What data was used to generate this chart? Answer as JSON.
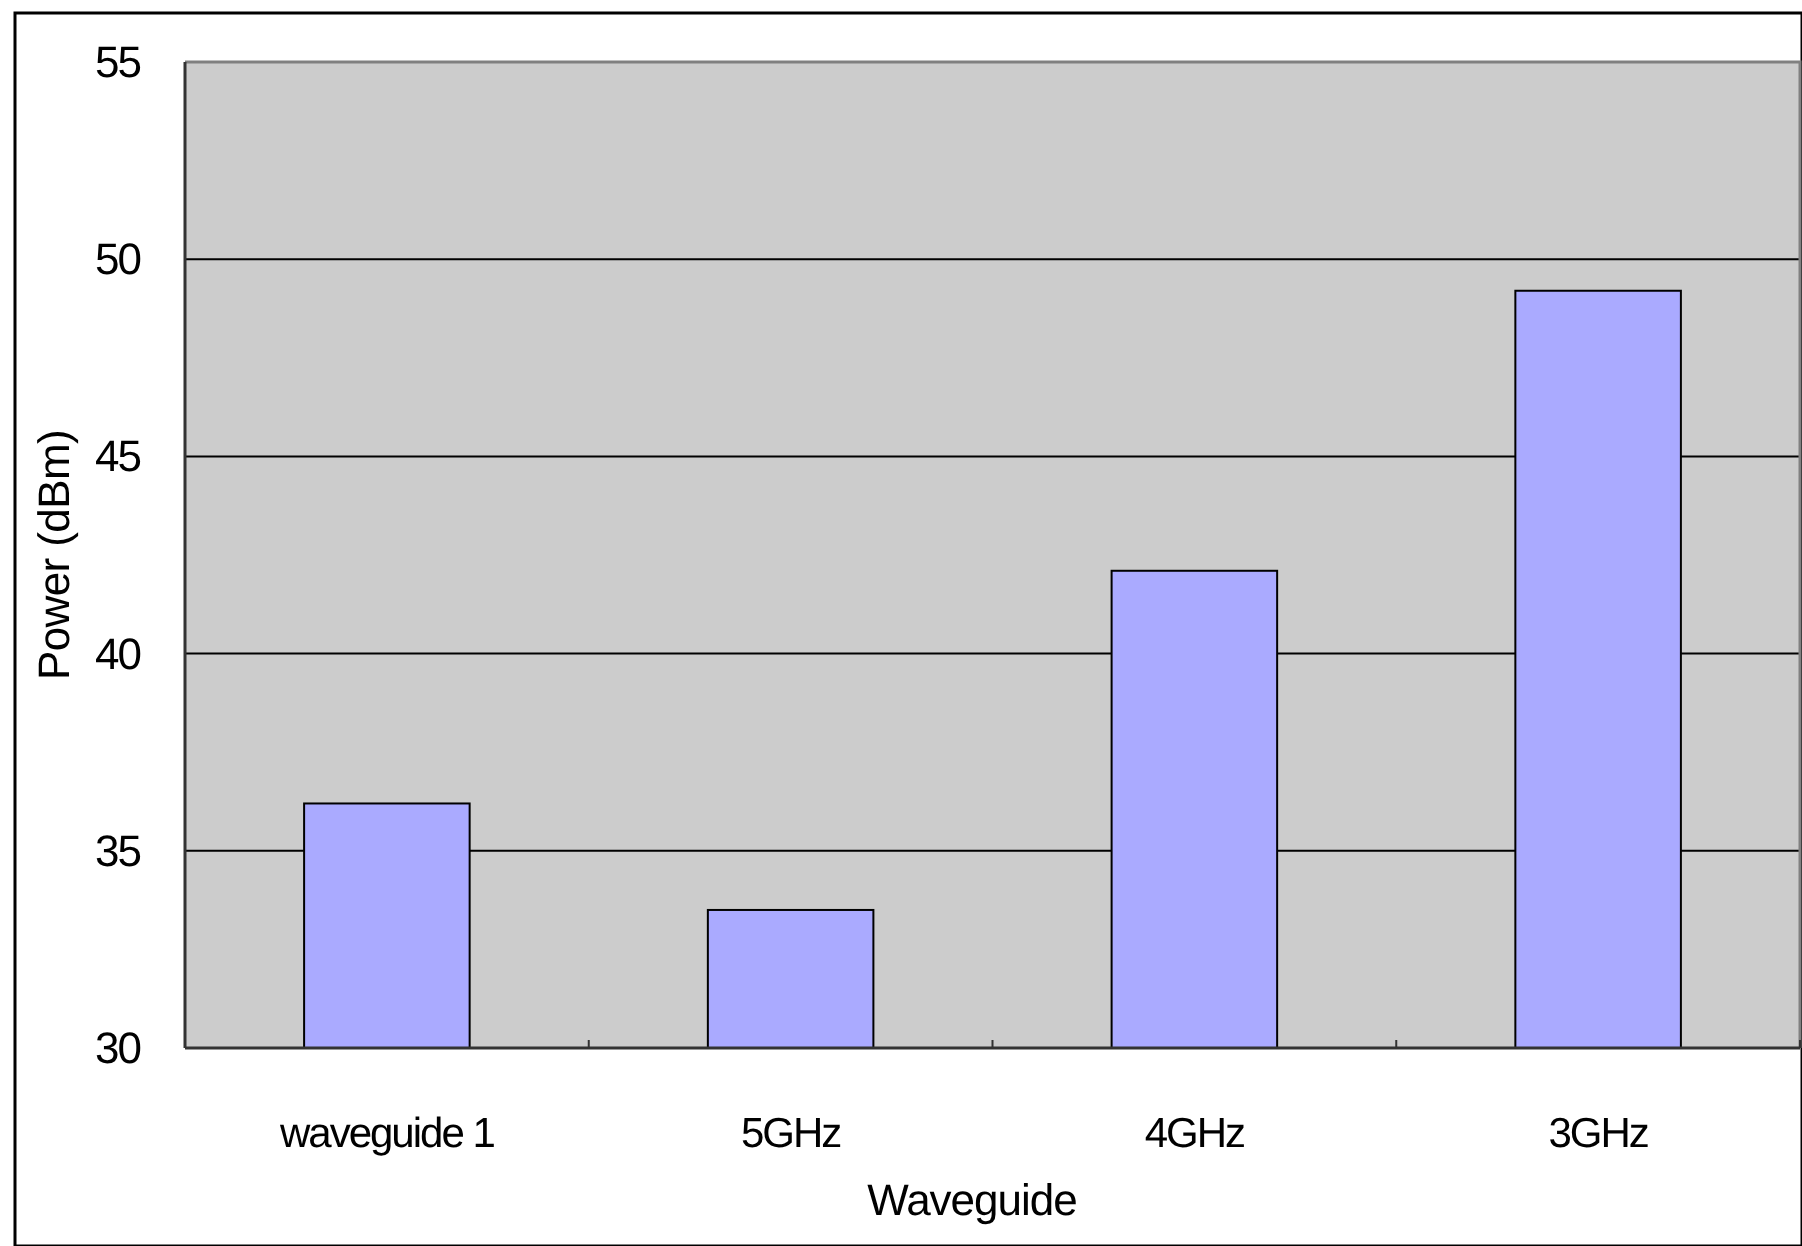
{
  "chart_data": {
    "type": "bar",
    "xlabel": "Waveguide",
    "ylabel": "Power (dBm)",
    "categories": [
      "waveguide 1",
      "5GHz",
      "4GHz",
      "3GHz"
    ],
    "values": [
      36.2,
      33.5,
      42.1,
      49.2
    ],
    "color": "#aaaaff",
    "ylim": [
      30,
      55
    ],
    "yticks": [
      30,
      35,
      40,
      45,
      50,
      55
    ],
    "grid": "y"
  }
}
